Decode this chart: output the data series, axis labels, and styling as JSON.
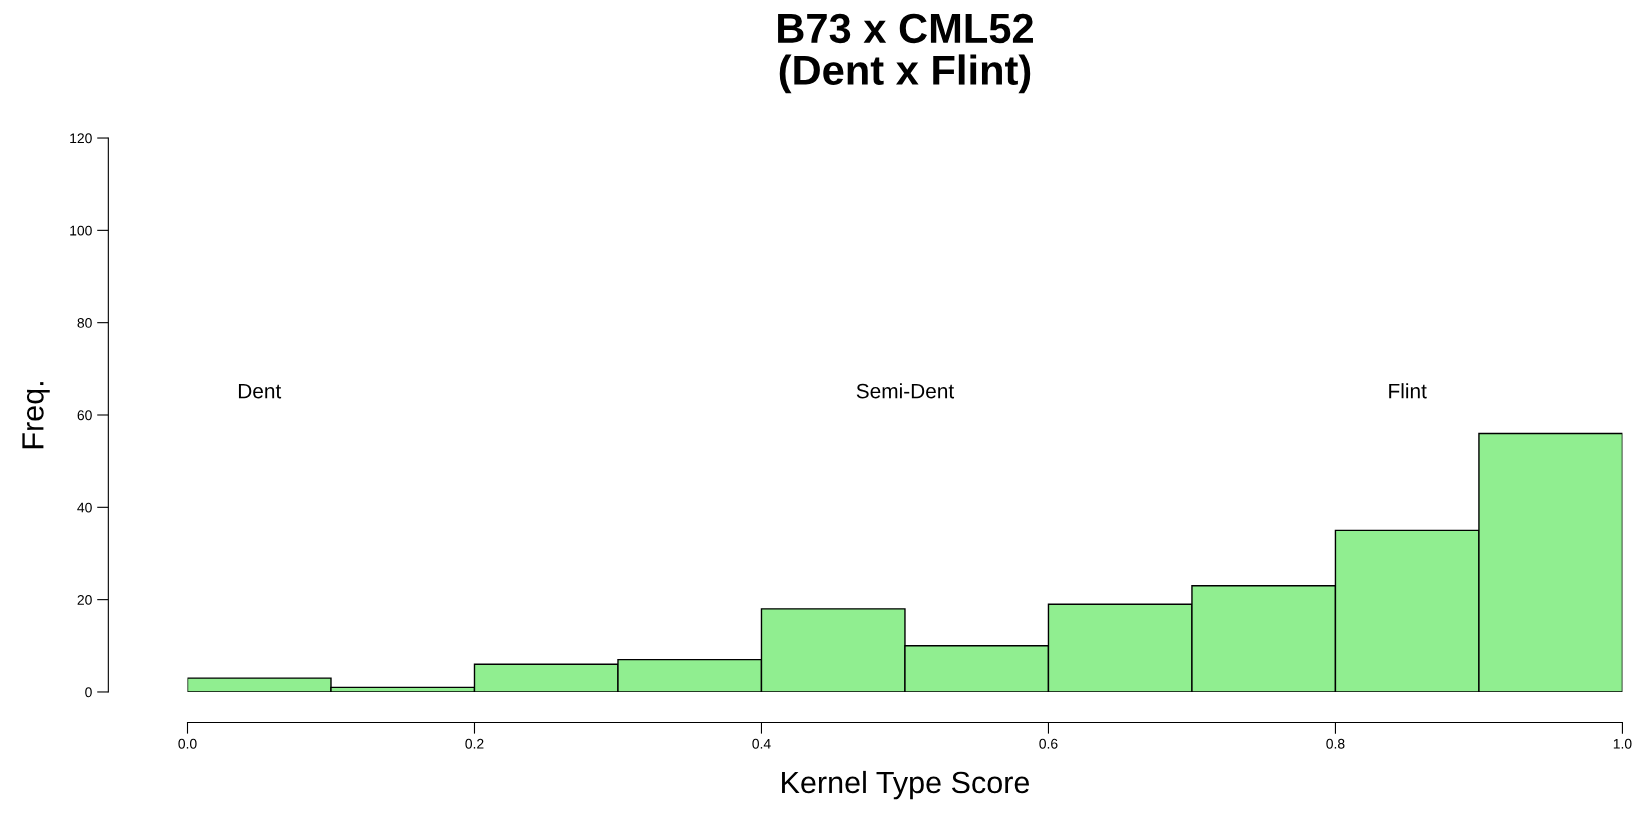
{
  "chart_data": {
    "type": "histogram",
    "title": "B73 x CML52\n(Dent x Flint)",
    "xlabel": "Kernel Type Score",
    "ylabel": "Freq.",
    "bins": [
      0.0,
      0.1,
      0.2,
      0.3,
      0.4,
      0.5,
      0.6,
      0.7,
      0.8,
      0.9,
      1.0
    ],
    "values": [
      3,
      1,
      6,
      7,
      18,
      10,
      19,
      23,
      35,
      56
    ],
    "color": "#90ee90",
    "xlim": [
      0,
      1
    ],
    "xticks": [
      {
        "value": 0,
        "label": "0.0"
      },
      0.2,
      0.4,
      0.6,
      0.8,
      {
        "value": 1,
        "label": "1.0"
      }
    ],
    "ylim": [
      0,
      120
    ],
    "yticks": [
      0,
      20,
      40,
      60,
      80,
      100,
      120
    ],
    "annotations": [
      "Dent",
      "Semi-Dent",
      "Flint"
    ],
    "grid": false,
    "legend": false
  }
}
